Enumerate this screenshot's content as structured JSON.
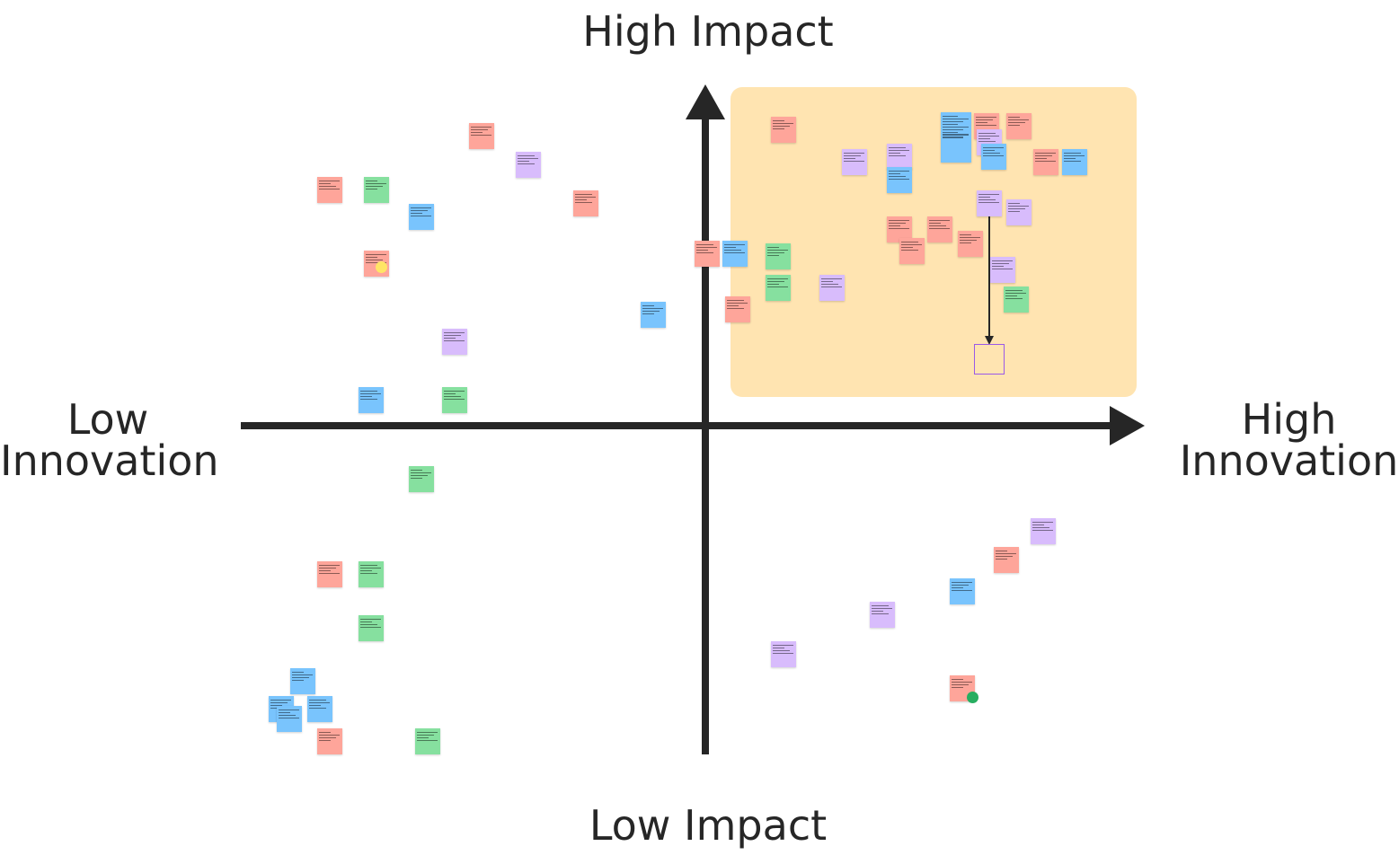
{
  "axes": {
    "top_label": "High Impact",
    "bottom_label": "Low Impact",
    "left_label": [
      "Low",
      "Innovation"
    ],
    "right_label": [
      "High",
      "Innovation"
    ]
  },
  "colors": {
    "axis": "#262626",
    "highlight_zone": "#ffe4b1",
    "note_red": "#fea59a",
    "note_green": "#86e09f",
    "note_blue": "#79c4fd",
    "note_purple": "#d8bcfc",
    "empty_box_border": "#9b59e8"
  },
  "notes": [
    {
      "color": "red",
      "quadrant": "top-left"
    },
    {
      "color": "purple",
      "quadrant": "top-left"
    },
    {
      "color": "red",
      "quadrant": "top-left"
    },
    {
      "color": "green",
      "quadrant": "top-left"
    },
    {
      "color": "blue",
      "quadrant": "top-left"
    },
    {
      "color": "red",
      "quadrant": "top-left"
    },
    {
      "color": "red",
      "quadrant": "top-left"
    },
    {
      "color": "blue",
      "quadrant": "top-left"
    },
    {
      "color": "purple",
      "quadrant": "top-left"
    },
    {
      "color": "blue",
      "quadrant": "top-left"
    },
    {
      "color": "green",
      "quadrant": "top-left"
    },
    {
      "color": "green",
      "quadrant": "bottom-left"
    },
    {
      "color": "red",
      "quadrant": "bottom-left"
    },
    {
      "color": "green",
      "quadrant": "bottom-left"
    },
    {
      "color": "green",
      "quadrant": "bottom-left"
    },
    {
      "color": "blue",
      "quadrant": "bottom-left"
    },
    {
      "color": "blue",
      "quadrant": "bottom-left"
    },
    {
      "color": "blue",
      "quadrant": "bottom-left"
    },
    {
      "color": "blue",
      "quadrant": "bottom-left"
    },
    {
      "color": "red",
      "quadrant": "bottom-left"
    },
    {
      "color": "green",
      "quadrant": "bottom-left"
    },
    {
      "color": "red",
      "quadrant": "top-right"
    },
    {
      "color": "blue",
      "quadrant": "top-right"
    },
    {
      "color": "green",
      "quadrant": "top-right"
    },
    {
      "color": "green",
      "quadrant": "top-right"
    },
    {
      "color": "red",
      "quadrant": "top-right"
    },
    {
      "color": "purple",
      "quadrant": "top-right"
    },
    {
      "color": "red",
      "quadrant": "top-right"
    },
    {
      "color": "purple",
      "quadrant": "top-right"
    },
    {
      "color": "purple",
      "quadrant": "top-right"
    },
    {
      "color": "blue",
      "quadrant": "top-right"
    },
    {
      "color": "blue",
      "quadrant": "top-right"
    },
    {
      "color": "red",
      "quadrant": "top-right"
    },
    {
      "color": "purple",
      "quadrant": "top-right"
    },
    {
      "color": "blue",
      "quadrant": "top-right"
    },
    {
      "color": "red",
      "quadrant": "top-right"
    },
    {
      "color": "red",
      "quadrant": "top-right"
    },
    {
      "color": "blue",
      "quadrant": "top-right"
    },
    {
      "color": "purple",
      "quadrant": "top-right"
    },
    {
      "color": "purple",
      "quadrant": "top-right"
    },
    {
      "color": "red",
      "quadrant": "top-right"
    },
    {
      "color": "red",
      "quadrant": "top-right"
    },
    {
      "color": "red",
      "quadrant": "top-right"
    },
    {
      "color": "red",
      "quadrant": "top-right"
    },
    {
      "color": "purple",
      "quadrant": "top-right"
    },
    {
      "color": "green",
      "quadrant": "top-right"
    },
    {
      "color": "purple",
      "quadrant": "bottom-right"
    },
    {
      "color": "red",
      "quadrant": "bottom-right"
    },
    {
      "color": "blue",
      "quadrant": "bottom-right"
    },
    {
      "color": "purple",
      "quadrant": "bottom-right"
    },
    {
      "color": "purple",
      "quadrant": "bottom-right"
    },
    {
      "color": "red",
      "quadrant": "bottom-right"
    }
  ]
}
